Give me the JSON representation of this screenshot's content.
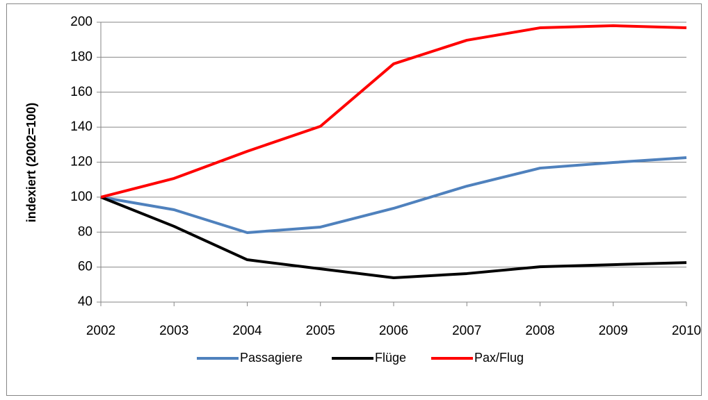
{
  "chart_data": {
    "type": "line",
    "y_label": "indexiert (2002=100)",
    "categories": [
      "2002",
      "2003",
      "2004",
      "2005",
      "2006",
      "2007",
      "2008",
      "2009",
      "2010"
    ],
    "series": [
      {
        "name": "Passagiere",
        "color": "#4f81bd",
        "values": [
          100,
          92.8,
          79.7,
          82.9,
          93.6,
          106.3,
          116.6,
          119.8,
          122.6
        ]
      },
      {
        "name": "Flüge",
        "color": "#000000",
        "values": [
          100,
          83.3,
          64.2,
          59,
          53.9,
          56.3,
          60.2,
          61.4,
          62.6
        ]
      },
      {
        "name": "Pax/Flug",
        "color": "#ff0000",
        "values": [
          100,
          110.7,
          126.2,
          140.5,
          176.2,
          189.7,
          196.8,
          198,
          196.8
        ]
      }
    ],
    "ylim": [
      40,
      200
    ],
    "yticks": [
      40,
      60,
      80,
      100,
      120,
      140,
      160,
      180,
      200
    ],
    "grid": true,
    "legend": "bottom"
  }
}
